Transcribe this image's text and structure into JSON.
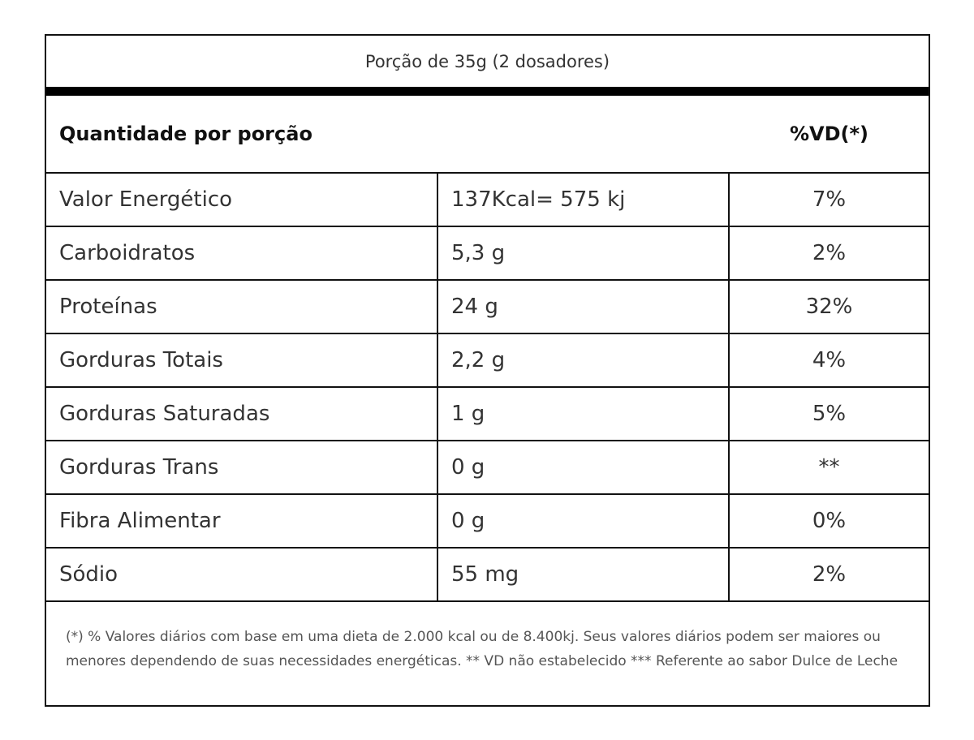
{
  "serving": "Porção de 35g (2 dosadores)",
  "header": {
    "quantity": "Quantidade por porção",
    "dv": "%VD(*)"
  },
  "rows": [
    {
      "nutrient": "Valor Energético",
      "amount": "137Kcal= 575 kj",
      "dv": "7%"
    },
    {
      "nutrient": "Carboidratos",
      "amount": "5,3 g",
      "dv": "2%"
    },
    {
      "nutrient": "Proteínas",
      "amount": "24 g",
      "dv": "32%"
    },
    {
      "nutrient": "Gorduras Totais",
      "amount": "2,2 g",
      "dv": "4%"
    },
    {
      "nutrient": "Gorduras Saturadas",
      "amount": "1 g",
      "dv": "5%"
    },
    {
      "nutrient": "Gorduras Trans",
      "amount": "0 g",
      "dv": "**"
    },
    {
      "nutrient": "Fibra Alimentar",
      "amount": "0 g",
      "dv": "0%"
    },
    {
      "nutrient": "Sódio",
      "amount": "55 mg",
      "dv": "2%"
    }
  ],
  "footnote": "(*) % Valores diários com base em uma dieta de 2.000 kcal ou de 8.400kj. Seus valores diários podem ser maiores ou menores dependendo de suas necessidades energéticas. ** VD não estabelecido *** Referente ao sabor Dulce de Leche"
}
